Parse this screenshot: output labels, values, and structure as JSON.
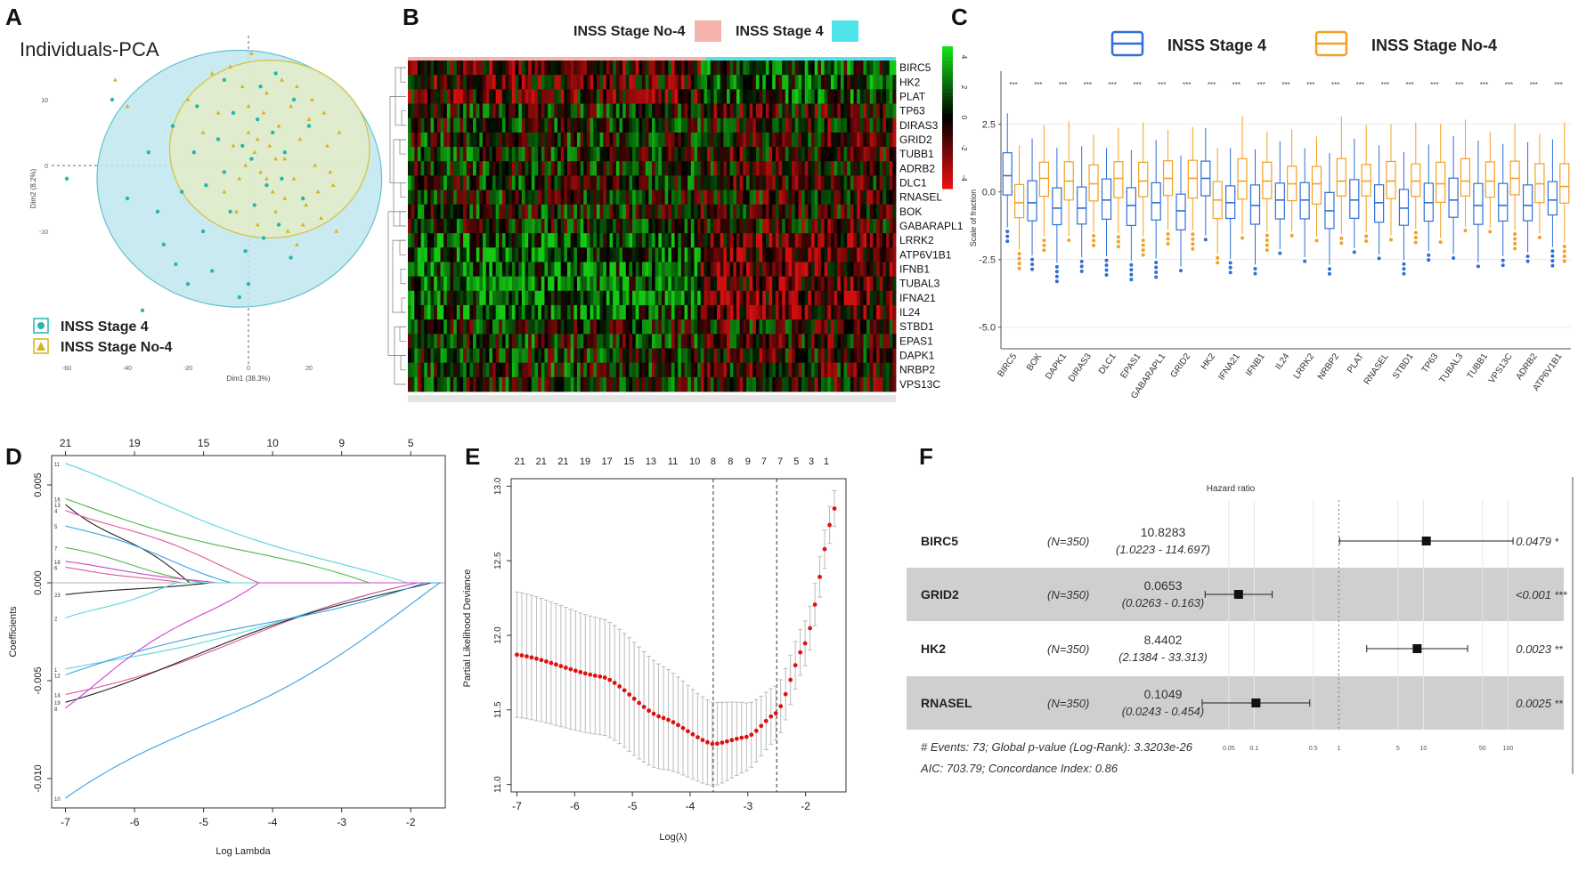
{
  "figure": {
    "panel_letters": [
      "A",
      "B",
      "C",
      "D",
      "E",
      "F"
    ]
  },
  "chart_data": [
    {
      "panel": "A",
      "type": "scatter",
      "title": "Individuals-PCA",
      "xlabel": "Dim1 (38.3%)",
      "ylabel": "Dim2 (8.2%)",
      "xlim": [
        -65,
        35
      ],
      "ylim": [
        -30,
        20
      ],
      "xticks": [
        -60,
        -40,
        -20,
        0,
        20
      ],
      "yticks": [
        -10,
        0,
        10
      ],
      "legend": [
        {
          "label": "INSS Stage 4",
          "color": "#23b7b0"
        },
        {
          "label": "INSS Stage No-4",
          "color": "#d9b21f"
        }
      ],
      "ellipses": [
        {
          "group": "INSS Stage 4",
          "center": [
            -3,
            -2
          ],
          "radius": [
            47,
            19.5
          ],
          "fill": "#bfe6ee",
          "stroke": "#5fc3cf"
        },
        {
          "group": "INSS Stage No-4",
          "center": [
            7,
            2.5
          ],
          "radius": [
            33,
            13.5
          ],
          "fill": "#e3edc8",
          "stroke": "#d6bf3a"
        }
      ],
      "series": [
        {
          "name": "INSS Stage 4",
          "color": "#23b7b0",
          "points": [
            [
              -45,
              10
            ],
            [
              -60,
              -2
            ],
            [
              -35,
              -22
            ],
            [
              -30,
              -7
            ],
            [
              -22,
              -4
            ],
            [
              -18,
              2
            ],
            [
              -15,
              -10
            ],
            [
              -12,
              -16
            ],
            [
              -10,
              4
            ],
            [
              -8,
              -1
            ],
            [
              -5,
              8
            ],
            [
              -3,
              -20
            ],
            [
              -1,
              -13
            ],
            [
              1,
              1
            ],
            [
              2,
              -6
            ],
            [
              4,
              12
            ],
            [
              6,
              -3
            ],
            [
              8,
              5
            ],
            [
              10,
              -9
            ],
            [
              12,
              2
            ],
            [
              14,
              -14
            ],
            [
              -25,
              6
            ],
            [
              -40,
              -5
            ],
            [
              -20,
              -18
            ],
            [
              -6,
              -7
            ],
            [
              3,
              7
            ],
            [
              -14,
              -3
            ],
            [
              -28,
              -12
            ],
            [
              0,
              -18
            ],
            [
              15,
              10
            ],
            [
              18,
              -5
            ],
            [
              -33,
              2
            ],
            [
              -8,
              13
            ],
            [
              5,
              -11
            ],
            [
              -17,
              9
            ],
            [
              9,
              14
            ],
            [
              -2,
              3
            ],
            [
              20,
              6
            ],
            [
              -24,
              -15
            ],
            [
              11,
              -2
            ]
          ]
        },
        {
          "name": "INSS Stage No-4",
          "color": "#d9b21f",
          "points": [
            [
              -20,
              10
            ],
            [
              -15,
              5
            ],
            [
              -10,
              8
            ],
            [
              -5,
              3
            ],
            [
              -2,
              12
            ],
            [
              0,
              5
            ],
            [
              2,
              2
            ],
            [
              4,
              -1
            ],
            [
              5,
              8
            ],
            [
              7,
              3
            ],
            [
              8,
              -4
            ],
            [
              10,
              6
            ],
            [
              12,
              1
            ],
            [
              14,
              9
            ],
            [
              15,
              -2
            ],
            [
              17,
              4
            ],
            [
              19,
              -6
            ],
            [
              20,
              7
            ],
            [
              22,
              0
            ],
            [
              24,
              -8
            ],
            [
              26,
              3
            ],
            [
              28,
              -3
            ],
            [
              30,
              5
            ],
            [
              -8,
              -4
            ],
            [
              -4,
              -7
            ],
            [
              3,
              -9
            ],
            [
              6,
              11
            ],
            [
              9,
              -7
            ],
            [
              11,
              13
            ],
            [
              13,
              -10
            ],
            [
              16,
              12
            ],
            [
              18,
              -9
            ],
            [
              21,
              10
            ],
            [
              23,
              -4
            ],
            [
              25,
              8
            ],
            [
              -12,
              14
            ],
            [
              -6,
              15
            ],
            [
              1,
              17
            ],
            [
              -44,
              13
            ],
            [
              -40,
              9
            ],
            [
              27,
              -1
            ],
            [
              -1,
              0
            ],
            [
              3,
              4
            ],
            [
              6,
              -2
            ],
            [
              9,
              1
            ],
            [
              12,
              -5
            ],
            [
              -3,
              -2
            ],
            [
              0,
              9
            ],
            [
              16,
              -12
            ],
            [
              29,
              -10
            ]
          ]
        }
      ]
    },
    {
      "panel": "B",
      "type": "heatmap",
      "legend": [
        {
          "label": "INSS Stage No-4",
          "color": "#f6b3ad"
        },
        {
          "label": "INSS Stage 4",
          "color": "#4fe3ea"
        }
      ],
      "rows": [
        "BIRC5",
        "HK2",
        "PLAT",
        "TP63",
        "DIRAS3",
        "GRID2",
        "TUBB1",
        "ADRB2",
        "DLC1",
        "RNASEL",
        "BOK",
        "GABARAPL1",
        "LRRK2",
        "ATP6V1B1",
        "IFNB1",
        "TUBAL3",
        "IFNA21",
        "IL24",
        "STBD1",
        "EPAS1",
        "DAPK1",
        "NRBP2",
        "VPS13C"
      ],
      "scale_ticks": [
        "4",
        "2",
        "0",
        "-2",
        "-4"
      ],
      "scale_range": [
        -4,
        4
      ],
      "group_split": 0.61
    },
    {
      "panel": "C",
      "type": "boxplot",
      "ylabel": "Scale of fraction",
      "ylim": [
        -5.8,
        4.2
      ],
      "yticks": [
        -5.0,
        -2.5,
        0.0,
        2.5
      ],
      "ytick_labels": [
        "-5.0",
        "-2.5",
        "0.0",
        "2.5"
      ],
      "significance": "***",
      "categories": [
        "BIRC5",
        "BOK",
        "DAPK1",
        "DIRAS3",
        "DLC1",
        "EPAS1",
        "GABARAPL1",
        "GRID2",
        "HK2",
        "IFNA21",
        "IFNB1",
        "IL24",
        "LRRK2",
        "NRBP2",
        "PLAT",
        "RNASEL",
        "STBD1",
        "TP63",
        "TUBAL3",
        "TUBB1",
        "VPS13C",
        "ADRB2",
        "ATP6V1B1"
      ],
      "series": [
        {
          "name": "INSS Stage 4",
          "color": "#2f6fd6",
          "medians": [
            0.6,
            -0.4,
            -0.6,
            -0.6,
            -0.3,
            -0.5,
            -0.4,
            -0.7,
            0.5,
            -0.4,
            -0.5,
            -0.3,
            -0.3,
            -0.7,
            -0.3,
            -0.4,
            -0.6,
            -0.4,
            -0.3,
            -0.5,
            -0.5,
            -0.5,
            -0.3
          ]
        },
        {
          "name": "INSS Stage No-4",
          "color": "#f3a024",
          "medians": [
            -0.4,
            0.5,
            0.4,
            0.3,
            0.5,
            0.4,
            0.5,
            0.5,
            -0.3,
            0.4,
            0.4,
            0.3,
            0.3,
            0.4,
            0.4,
            0.4,
            0.4,
            0.3,
            0.4,
            0.4,
            0.5,
            0.3,
            0.2
          ]
        }
      ]
    },
    {
      "panel": "D",
      "type": "line",
      "xlabel": "Log Lambda",
      "ylabel": "Coefficients",
      "xlim": [
        -7.2,
        -1.5
      ],
      "ylim": [
        -0.0115,
        0.0065
      ],
      "xticks": [
        -7,
        -6,
        -5,
        -4,
        -3,
        -2
      ],
      "yticks": [
        -0.01,
        -0.005,
        0.0,
        0.005
      ],
      "ytick_labels": [
        "-0.010",
        "-0.005",
        "0.000",
        "0.005"
      ],
      "top_ticks": [
        {
          "at": -7,
          "label": "21"
        },
        {
          "at": -6,
          "label": "19"
        },
        {
          "at": -5,
          "label": "15"
        },
        {
          "at": -4,
          "label": "10"
        },
        {
          "at": -3,
          "label": "9"
        },
        {
          "at": -2,
          "label": "5"
        }
      ],
      "end_labels": [
        "11",
        "16",
        "13",
        "4",
        "5",
        "7",
        "18",
        "6",
        "23",
        "2",
        "1",
        "14",
        "19",
        "8",
        "12",
        "10"
      ],
      "series": [
        {
          "color": "#5ad4d8",
          "start": 0.0061,
          "zero_at": -2.05
        },
        {
          "color": "#52b848",
          "start": 0.0043,
          "zero_at": -2.6
        },
        {
          "color": "#222222",
          "start": 0.004,
          "zero_at": -5.2
        },
        {
          "color": "#e0579a",
          "start": 0.0037,
          "zero_at": -4.2
        },
        {
          "color": "#3aa0e0",
          "start": 0.0029,
          "zero_at": -4.6
        },
        {
          "color": "#52b848",
          "start": 0.0018,
          "zero_at": -5.0
        },
        {
          "color": "#cc44cc",
          "start": 0.0011,
          "zero_at": -4.8
        },
        {
          "color": "#e0579a",
          "start": 0.0008,
          "zero_at": -5.3
        },
        {
          "color": "#222222",
          "start": -0.0006,
          "zero_at": -4.9
        },
        {
          "color": "#5ad4d8",
          "start": -0.0018,
          "zero_at": -5.4
        },
        {
          "color": "#5ad4d8",
          "start": -0.0044,
          "zero_at": -1.9
        },
        {
          "color": "#e0579a",
          "start": -0.0057,
          "zero_at": -1.9
        },
        {
          "color": "#222222",
          "start": -0.0061,
          "zero_at": -1.7
        },
        {
          "color": "#cc44cc",
          "start": -0.0064,
          "zero_at": -4.2
        },
        {
          "color": "#3aa0e0",
          "start": -0.0047,
          "zero_at": -1.8
        },
        {
          "color": "#3aa0e0",
          "start": -0.011,
          "zero_at": -1.58
        }
      ]
    },
    {
      "panel": "E",
      "type": "line",
      "xlabel": "Log(λ)",
      "ylabel": "Partial Likelihood Deviance",
      "xlim": [
        -7.1,
        -1.3
      ],
      "ylim": [
        10.95,
        13.05
      ],
      "xticks": [
        -7,
        -6,
        -5,
        -4,
        -3,
        -2
      ],
      "yticks": [
        11.0,
        11.5,
        12.0,
        12.5,
        13.0
      ],
      "ytick_labels": [
        "11.0",
        "11.5",
        "12.0",
        "12.5",
        "13.0"
      ],
      "top_ticks": [
        {
          "at": -6.95,
          "label": "21"
        },
        {
          "at": -6.58,
          "label": "21"
        },
        {
          "at": -6.2,
          "label": "21"
        },
        {
          "at": -5.82,
          "label": "19"
        },
        {
          "at": -5.44,
          "label": "17"
        },
        {
          "at": -5.06,
          "label": "15"
        },
        {
          "at": -4.68,
          "label": "13"
        },
        {
          "at": -4.3,
          "label": "11"
        },
        {
          "at": -3.92,
          "label": "10"
        },
        {
          "at": -3.6,
          "label": "8"
        },
        {
          "at": -3.3,
          "label": "8"
        },
        {
          "at": -3.0,
          "label": "9"
        },
        {
          "at": -2.72,
          "label": "7"
        },
        {
          "at": -2.44,
          "label": "7"
        },
        {
          "at": -2.16,
          "label": "5"
        },
        {
          "at": -1.9,
          "label": "3"
        },
        {
          "at": -1.64,
          "label": "1"
        }
      ],
      "vlines": [
        -3.6,
        -2.5
      ],
      "curve_control": [
        [
          -7.0,
          11.87
        ],
        [
          -5.5,
          11.72
        ],
        [
          -4.5,
          11.45
        ],
        [
          -3.6,
          11.27
        ],
        [
          -3.0,
          11.32
        ],
        [
          -2.5,
          11.48
        ],
        [
          -2.0,
          11.95
        ],
        [
          -1.5,
          12.85
        ]
      ],
      "error_halfwidth": [
        [
          -7.0,
          0.42
        ],
        [
          -5.0,
          0.38
        ],
        [
          -3.6,
          0.28
        ],
        [
          -2.5,
          0.18
        ],
        [
          -2.0,
          0.15
        ],
        [
          -1.5,
          0.12
        ]
      ],
      "n_points": 66
    },
    {
      "panel": "F",
      "type": "forest",
      "title": "Hazard ratio",
      "xscale": "log",
      "xlim": [
        0.02,
        200
      ],
      "xticks": [
        0.05,
        0.1,
        0.5,
        1,
        5,
        10,
        50,
        100
      ],
      "xtick_labels": [
        "0.05",
        "0.1",
        "0.5",
        "1",
        "5",
        "10",
        "50",
        "100"
      ],
      "reference": 1,
      "rows": [
        {
          "gene": "BIRC5",
          "n": "(N=350)",
          "hr_text": "10.8283",
          "ci_text": "(1.0223 - 114.697)",
          "hr": 10.8283,
          "lo": 1.0223,
          "hi": 114.697,
          "p": "0.0479",
          "sig": "*",
          "shaded": false
        },
        {
          "gene": "GRID2",
          "n": "(N=350)",
          "hr_text": "0.0653",
          "ci_text": "(0.0263 -   0.163)",
          "hr": 0.0653,
          "lo": 0.0263,
          "hi": 0.163,
          "p": "<0.001",
          "sig": "***",
          "shaded": true
        },
        {
          "gene": "HK2",
          "n": "(N=350)",
          "hr_text": "8.4402",
          "ci_text": "(2.1384 -  33.313)",
          "hr": 8.4402,
          "lo": 2.1384,
          "hi": 33.313,
          "p": "0.0023",
          "sig": "**",
          "shaded": false
        },
        {
          "gene": "RNASEL",
          "n": "(N=350)",
          "hr_text": "0.1049",
          "ci_text": "(0.0243 -   0.454)",
          "hr": 0.1049,
          "lo": 0.0243,
          "hi": 0.454,
          "p": "0.0025",
          "sig": "**",
          "shaded": true
        }
      ],
      "footer": [
        "# Events: 73; Global p-value (Log-Rank): 3.3203e-26",
        "AIC: 703.79; Concordance Index: 0.86"
      ]
    }
  ]
}
